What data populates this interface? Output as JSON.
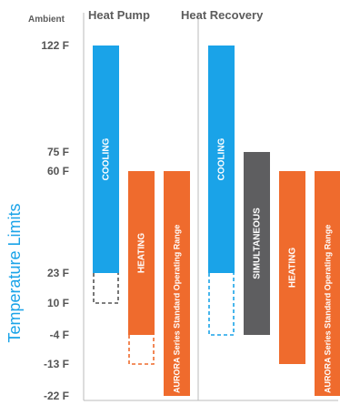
{
  "chart_data": {
    "type": "bar",
    "ylabel": "Temperature Limits",
    "axis_header": "Ambient",
    "y_ticks": [
      "122 F",
      "75 F",
      "60 F",
      "23 F",
      "10 F",
      "-4 F",
      "-13 F",
      "-22 F"
    ],
    "y_tick_values": [
      122,
      75,
      60,
      23,
      10,
      -4,
      -13,
      -22
    ],
    "groups": [
      {
        "name": "Heat Pump",
        "bars": [
          {
            "label": "COOLING",
            "low": 23,
            "high": 122,
            "ext_low": 10,
            "ext_color": "#555555",
            "color": "#1aa3e8"
          },
          {
            "label": "HEATING",
            "low": -4,
            "high": 60,
            "ext_low": -13,
            "ext_color": "#ef6b2d",
            "color": "#ef6b2d"
          },
          {
            "label": "AURORA Series Standard Operating Range",
            "low": -22,
            "high": 60,
            "color": "#ef6b2d"
          }
        ]
      },
      {
        "name": "Heat Recovery",
        "bars": [
          {
            "label": "COOLING",
            "low": 23,
            "high": 122,
            "ext_low": -4,
            "ext_color": "#1aa3e8",
            "color": "#1aa3e8"
          },
          {
            "label": "SIMULTANEOUS",
            "low": -4,
            "high": 75,
            "color": "#5e5e60"
          },
          {
            "label": "HEATING",
            "low": -13,
            "high": 60,
            "color": "#ef6b2d"
          },
          {
            "label": "AURORA Series Standard Operating Range",
            "low": -22,
            "high": 60,
            "color": "#ef6b2d"
          }
        ]
      }
    ]
  }
}
